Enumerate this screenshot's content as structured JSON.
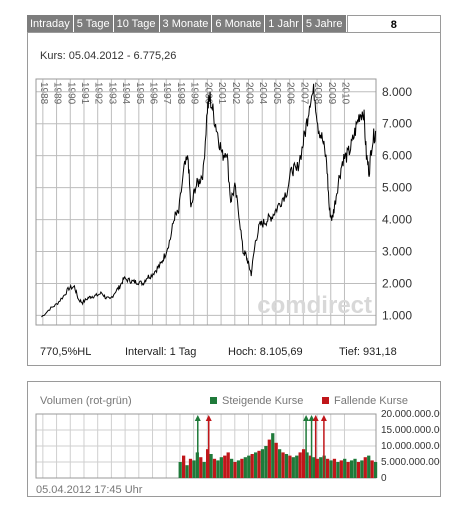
{
  "tabs": [
    {
      "label": "Intraday"
    },
    {
      "label": "5 Tage"
    },
    {
      "label": "10 Tage"
    },
    {
      "label": "3 Monate"
    },
    {
      "label": "6 Monate"
    },
    {
      "label": "1 Jahr"
    },
    {
      "label": "5 Jahre"
    },
    {
      "label": "8"
    }
  ],
  "kurs_line": "Kurs: 05.04.2012 - 6.775,26",
  "watermark": "comdirect",
  "stats": {
    "hl": "770,5%HL",
    "interval": "Intervall: 1 Tag",
    "high": "Hoch:  8.105,69",
    "low": "Tief:   931,18"
  },
  "volume": {
    "title": "Volumen (rot-grün)",
    "legend_up": "Steigende Kurse",
    "legend_down": "Fallende Kurse",
    "date": "05.04.2012 17:45 Uhr"
  },
  "colors": {
    "up": "#1f7a3a",
    "down": "#c0161a",
    "line": "#000000",
    "grid": "#bdbdbd"
  },
  "chart_data": [
    {
      "type": "line",
      "title": "",
      "x_label": "",
      "y_label": "",
      "x_ticks": [
        "1988",
        "1989",
        "1990",
        "1991",
        "1992",
        "1993",
        "1994",
        "1995",
        "1996",
        "1997",
        "1998",
        "1999",
        "2000",
        "2001",
        "2002",
        "2003",
        "2004",
        "2005",
        "2006",
        "2007",
        "2008",
        "2009",
        "2010"
      ],
      "y_ticks": [
        "1.000",
        "2.000",
        "3.000",
        "4.000",
        "5.000",
        "6.000",
        "7.000",
        "8.000"
      ],
      "ylim": [
        700,
        8400
      ],
      "xlim": [
        1987.5,
        2012.3
      ],
      "grid": true,
      "x": [
        1987.9,
        1988.5,
        1989.0,
        1989.5,
        1989.9,
        1990.3,
        1990.6,
        1990.9,
        1991.3,
        1991.6,
        1991.9,
        1992.3,
        1992.6,
        1992.9,
        1993.3,
        1993.6,
        1993.9,
        1994.3,
        1994.6,
        1994.9,
        1995.3,
        1995.6,
        1995.9,
        1996.3,
        1996.6,
        1996.9,
        1997.3,
        1997.6,
        1997.9,
        1998.3,
        1998.6,
        1998.8,
        1999.1,
        1999.4,
        1999.7,
        2000.0,
        2000.2,
        2000.5,
        2000.8,
        2001.1,
        2001.4,
        2001.7,
        2002.0,
        2002.3,
        2002.6,
        2002.8,
        2003.0,
        2003.2,
        2003.5,
        2003.8,
        2004.1,
        2004.4,
        2004.7,
        2005.0,
        2005.4,
        2005.8,
        2006.2,
        2006.5,
        2006.9,
        2007.2,
        2007.5,
        2007.8,
        2008.1,
        2008.4,
        2008.7,
        2008.9,
        2009.1,
        2009.3,
        2009.6,
        2009.9,
        2010.2,
        2010.5,
        2010.8,
        2011.1,
        2011.4,
        2011.6,
        2011.8,
        2012.0,
        2012.27
      ],
      "y": [
        950,
        1200,
        1350,
        1600,
        1850,
        1900,
        1500,
        1400,
        1550,
        1600,
        1620,
        1700,
        1550,
        1500,
        1750,
        1900,
        2150,
        2100,
        2050,
        2050,
        2000,
        2200,
        2250,
        2450,
        2600,
        2900,
        3400,
        4100,
        4200,
        5600,
        5900,
        4300,
        5000,
        5200,
        5500,
        7500,
        7800,
        7200,
        6600,
        6000,
        6200,
        4600,
        5000,
        4200,
        3000,
        2900,
        2600,
        2300,
        3300,
        3800,
        3900,
        4000,
        4100,
        4300,
        4600,
        4900,
        5600,
        5500,
        6200,
        6900,
        7800,
        8000,
        6900,
        6500,
        5800,
        4300,
        4000,
        4500,
        5300,
        5900,
        6000,
        6300,
        6800,
        7300,
        7400,
        6000,
        5500,
        6400,
        6775
      ]
    },
    {
      "type": "bar",
      "title": "",
      "series_names": [
        "Steigende Kurse",
        "Fallende Kurse"
      ],
      "y_ticks": [
        "20.000.000.000",
        "15.000.000.000",
        "10.000.000.000",
        "5.000.000.000",
        "0"
      ],
      "ylim": [
        0,
        20000000000
      ],
      "x_ticks": [
        "1988",
        "1989",
        "1990",
        "1991",
        "1992",
        "1993",
        "1994",
        "1995",
        "1996",
        "1997",
        "1998",
        "1999",
        "2000",
        "2001",
        "2002",
        "2003",
        "2004",
        "2005",
        "2006",
        "2007",
        "2008",
        "2009",
        "2010"
      ],
      "x_start": 1997.9,
      "x_step": 0.25,
      "values": [
        5000000000,
        7000000000,
        4000000000,
        6000000000,
        5500000000,
        8000000000,
        6500000000,
        5000000000,
        9000000000,
        7500000000,
        6000000000,
        5500000000,
        6500000000,
        7000000000,
        8000000000,
        6000000000,
        5000000000,
        5500000000,
        6000000000,
        6500000000,
        7000000000,
        7500000000,
        8000000000,
        8500000000,
        9000000000,
        10000000000,
        12000000000,
        14000000000,
        11000000000,
        9000000000,
        8000000000,
        7500000000,
        7000000000,
        6500000000,
        7000000000,
        8000000000,
        9000000000,
        8000000000,
        7000000000,
        6500000000,
        6000000000,
        6500000000,
        7000000000,
        6000000000,
        5500000000,
        6000000000,
        5000000000,
        5500000000,
        6000000000,
        5000000000,
        5500000000,
        6000000000,
        5000000000,
        5500000000,
        6500000000,
        7000000000,
        5500000000,
        5000000000
      ],
      "up": [
        true,
        false,
        true,
        false,
        true,
        true,
        false,
        true,
        false,
        true,
        false,
        true,
        true,
        false,
        false,
        true,
        false,
        true,
        false,
        true,
        true,
        false,
        true,
        false,
        true,
        true,
        false,
        true,
        false,
        true,
        false,
        true,
        false,
        true,
        true,
        false,
        false,
        true,
        false,
        true,
        false,
        true,
        true,
        false,
        true,
        false,
        true,
        false,
        true,
        false,
        true,
        true,
        false,
        true,
        false,
        true,
        false,
        true
      ],
      "up_markers": [
        1999.3,
        2007.2,
        2007.6
      ],
      "down_markers": [
        2000.1,
        2007.9,
        2008.5
      ]
    }
  ]
}
